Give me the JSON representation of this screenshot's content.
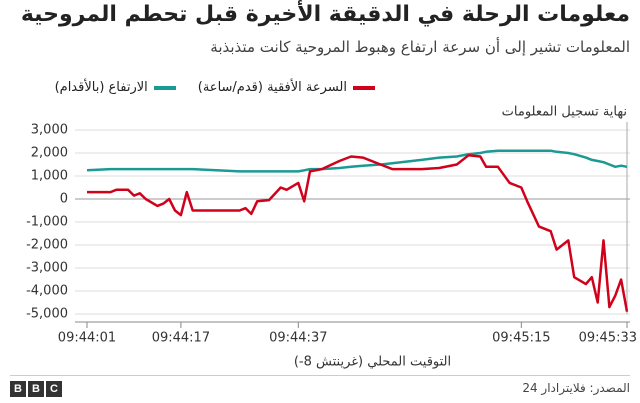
{
  "chart_data": {
    "type": "line",
    "title": "معلومات الرحلة في الدقيقة الأخيرة قبل تحطم المروحية",
    "subtitle": "المعلومات تشير إلى أن سرعة ارتفاع وهبوط المروحية كانت متذبذبة",
    "x_label": "التوقيت المحلي (غرينتش 8-)",
    "annotation": "نهاية تسجيل المعلومات",
    "x": [
      "09:44:01",
      "09:44:05",
      "09:44:06",
      "09:44:08",
      "09:44:09",
      "09:44:10",
      "09:44:11",
      "09:44:13",
      "09:44:14",
      "09:44:15",
      "09:44:16",
      "09:44:17",
      "09:44:18",
      "09:44:19",
      "09:44:27",
      "09:44:28",
      "09:44:29",
      "09:44:30",
      "09:44:32",
      "09:44:34",
      "09:44:35",
      "09:44:37",
      "09:44:38",
      "09:44:39",
      "09:44:41",
      "09:44:44",
      "09:44:46",
      "09:44:48",
      "09:44:51",
      "09:44:53",
      "09:44:58",
      "09:45:01",
      "09:45:04",
      "09:45:06",
      "09:45:08",
      "09:45:09",
      "09:45:11",
      "09:45:13",
      "09:45:15",
      "09:45:16",
      "09:45:18",
      "09:45:20",
      "09:45:21",
      "09:45:23",
      "09:45:24",
      "09:45:26",
      "09:45:27",
      "09:45:28",
      "09:45:29",
      "09:45:30",
      "09:45:31",
      "09:45:32",
      "09:45:33"
    ],
    "xlim": [
      "09:44:01",
      "09:45:33"
    ],
    "xticks": [
      "09:44:01",
      "09:44:17",
      "09:44:37",
      "09:45:15",
      "09:45:33"
    ],
    "ylim": [
      -5000,
      3000
    ],
    "yticks": [
      {
        "value": 3000,
        "label": "3,000"
      },
      {
        "value": 2000,
        "label": "2,000"
      },
      {
        "value": 1000,
        "label": "1,000"
      },
      0,
      {
        "value": -1000,
        "label": "-1,000"
      },
      {
        "value": -2000,
        "label": "-2,000"
      },
      {
        "value": -3000,
        "label": "-3,000"
      },
      {
        "value": -4000,
        "label": "-4,000"
      },
      {
        "value": -5000,
        "label": "-5,000"
      }
    ],
    "grid": true,
    "series": [
      {
        "name": "الارتفاع (بالأقدام)",
        "color": "#1b9a93",
        "values": [
          1250,
          1300,
          1300,
          1300,
          1300,
          1300,
          1300,
          1300,
          1300,
          1300,
          1300,
          1300,
          1300,
          1300,
          1200,
          1200,
          1200,
          1200,
          1200,
          1200,
          1200,
          1200,
          1250,
          1300,
          1300,
          1350,
          1400,
          1450,
          1500,
          1550,
          1700,
          1800,
          1850,
          1950,
          2000,
          2050,
          2100,
          2100,
          2100,
          2100,
          2100,
          2100,
          2050,
          2000,
          1950,
          1800,
          1700,
          1650,
          1600,
          1500,
          1400,
          1450,
          1400
        ]
      },
      {
        "name": "السرعة الأفقية (قدم/ساعة)",
        "color": "#d0021b",
        "values": [
          300,
          300,
          400,
          400,
          150,
          250,
          0,
          -300,
          -200,
          0,
          -500,
          -700,
          300,
          -500,
          -500,
          -400,
          -650,
          -100,
          -50,
          500,
          400,
          700,
          -100,
          1200,
          1300,
          1650,
          1850,
          1800,
          1500,
          1300,
          1300,
          1350,
          1500,
          1900,
          1850,
          1400,
          1400,
          700,
          500,
          -100,
          -1200,
          -1400,
          -2200,
          -1800,
          -3400,
          -3700,
          -3400,
          -4500,
          -1800,
          -4700,
          -4200,
          -3500,
          -4900
        ]
      }
    ]
  },
  "footer": {
    "source": "المصدر: فلايترادار 24",
    "logo": [
      "B",
      "B",
      "C"
    ]
  }
}
